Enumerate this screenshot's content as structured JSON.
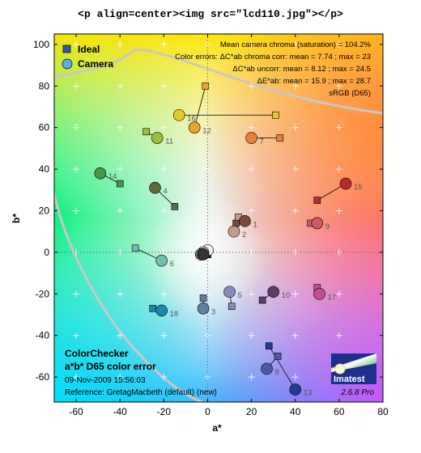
{
  "header": {
    "title": "<p align=center><img src=\"lcd110.jpg\"></p>"
  },
  "info": {
    "line1": "Mean camera chroma (saturation) = 104.2%",
    "line2": "Color errors:  ΔC*ab chroma corr:  mean = 7.74 ;  max = 23",
    "line3": "ΔC*ab uncorr:  mean = 8.12 ;  max = 24.5",
    "line4": "ΔE*ab:  mean = 15.9 ;  max = 28.7",
    "line5": "sRGB (D65)"
  },
  "legend": {
    "ideal": "Ideal",
    "camera": "Camera"
  },
  "bottom_left": {
    "line1": "ColorChecker",
    "line2": "a*b* D65 color error",
    "line3": "09-Nov-2009 15:56:03",
    "line4": "Reference: GretagMacbeth (default) (new)"
  },
  "logo": {
    "name": "Imatest",
    "version": "2.6.8  Pro"
  },
  "chart_data": {
    "type": "scatter",
    "xlabel": "a*",
    "ylabel": "b*",
    "xlim": [
      -70,
      80
    ],
    "ylim": [
      -72,
      105
    ],
    "xticks": [
      -60,
      -40,
      -20,
      0,
      20,
      40,
      60,
      80
    ],
    "yticks": [
      -60,
      -40,
      -20,
      0,
      20,
      40,
      60,
      80,
      100
    ],
    "grid": true,
    "legend_position": "top-left",
    "series": [
      {
        "name": "Ideal"
      },
      {
        "name": "Camera"
      }
    ],
    "patches": [
      {
        "id": "1",
        "ideal": [
          13,
          14
        ],
        "camera": [
          17,
          15
        ],
        "color": "#7a4a3c"
      },
      {
        "id": "2",
        "ideal": [
          14,
          17
        ],
        "camera": [
          12,
          10
        ],
        "color": "#c89a88"
      },
      {
        "id": "3",
        "ideal": [
          -2,
          -22
        ],
        "camera": [
          -2,
          -27
        ],
        "color": "#5f7fa0"
      },
      {
        "id": "4",
        "ideal": [
          -15,
          22
        ],
        "camera": [
          -24,
          31
        ],
        "color": "#5c6b3e"
      },
      {
        "id": "5",
        "ideal": [
          11,
          -26
        ],
        "camera": [
          10,
          -19
        ],
        "color": "#8a8ab8"
      },
      {
        "id": "6",
        "ideal": [
          -33,
          2
        ],
        "camera": [
          -21,
          -4
        ],
        "color": "#6ec0b0"
      },
      {
        "id": "7",
        "ideal": [
          33,
          55
        ],
        "camera": [
          20,
          55
        ],
        "color": "#e8823a"
      },
      {
        "id": "8",
        "ideal": [
          32,
          -50
        ],
        "camera": [
          27,
          -56
        ],
        "color": "#4a5aa8"
      },
      {
        "id": "9",
        "ideal": [
          47,
          14
        ],
        "camera": [
          50,
          14
        ],
        "color": "#d05868"
      },
      {
        "id": "10",
        "ideal": [
          25,
          -23
        ],
        "camera": [
          30,
          -19
        ],
        "color": "#5e3c6a"
      },
      {
        "id": "11",
        "ideal": [
          -28,
          58
        ],
        "camera": [
          -23,
          55
        ],
        "color": "#9dbc40"
      },
      {
        "id": "12",
        "ideal": [
          -1,
          80
        ],
        "camera": [
          -6,
          60
        ],
        "color": "#e8a62e"
      },
      {
        "id": "13",
        "ideal": [
          28,
          -45
        ],
        "camera": [
          40,
          -66
        ],
        "color": "#253a96"
      },
      {
        "id": "14",
        "ideal": [
          -40,
          33
        ],
        "camera": [
          -49,
          38
        ],
        "color": "#47944a"
      },
      {
        "id": "15",
        "ideal": [
          50,
          25
        ],
        "camera": [
          63,
          33
        ],
        "color": "#b42e30"
      },
      {
        "id": "16",
        "ideal": [
          31,
          66
        ],
        "camera": [
          -13,
          66
        ],
        "color": "#e8c82a"
      },
      {
        "id": "17",
        "ideal": [
          50,
          -17
        ],
        "camera": [
          51,
          -20
        ],
        "color": "#c0508e"
      },
      {
        "id": "18",
        "ideal": [
          -25,
          -27
        ],
        "camera": [
          -21,
          -28
        ],
        "color": "#1a88a8"
      },
      {
        "id": "19",
        "ideal": [
          0,
          1
        ],
        "camera": [
          0,
          1
        ],
        "color": "#f2f2f0"
      },
      {
        "id": "20",
        "ideal": [
          0,
          -1
        ],
        "camera": [
          -2,
          0
        ],
        "color": "#c8c8c8"
      },
      {
        "id": "21",
        "ideal": [
          0,
          -1
        ],
        "camera": [
          -3,
          -1
        ],
        "color": "#a0a0a0"
      },
      {
        "id": "22",
        "ideal": [
          0,
          -1
        ],
        "camera": [
          -3,
          -1
        ],
        "color": "#7a7a7a"
      },
      {
        "id": "23",
        "ideal": [
          0,
          -1
        ],
        "camera": [
          -2,
          -1
        ],
        "color": "#555555"
      },
      {
        "id": "24",
        "ideal": [
          0,
          -1
        ],
        "camera": [
          -2,
          -1
        ],
        "color": "#343434"
      }
    ]
  }
}
